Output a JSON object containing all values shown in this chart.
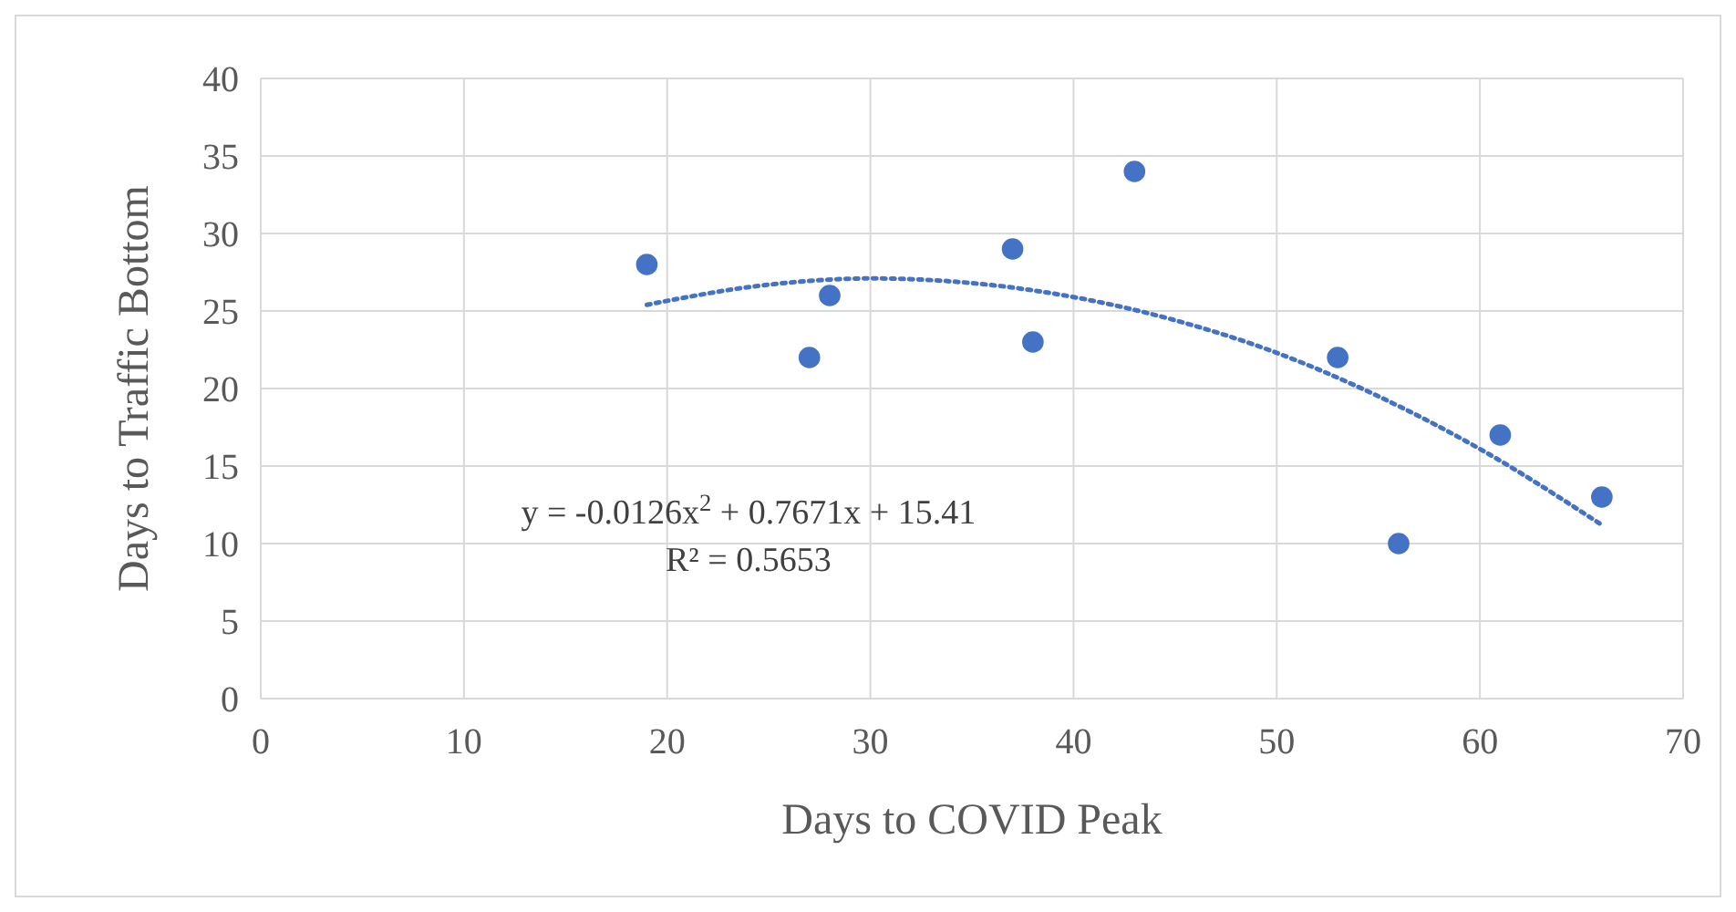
{
  "chart_data": {
    "type": "scatter",
    "xlabel": "Days to COVID Peak",
    "ylabel": "Days to Traffic Bottom",
    "xlim": [
      0,
      70
    ],
    "xticks": [
      0,
      10,
      20,
      30,
      40,
      50,
      60,
      70
    ],
    "ylim": [
      0,
      40
    ],
    "yticks": [
      0,
      5,
      10,
      15,
      20,
      25,
      30,
      35,
      40
    ],
    "grid": true,
    "series": [
      {
        "marker": "circle",
        "color": "#4472c4",
        "x": [
          19,
          27,
          28,
          37,
          38,
          43,
          53,
          56,
          61,
          66
        ],
        "values": [
          28,
          22,
          26,
          29,
          23,
          34,
          22,
          10,
          17,
          13
        ]
      },
      {
        "type": "line",
        "color": "#4472c4",
        "line_style": "dotted",
        "x": [
          19,
          25,
          30,
          35,
          40,
          45,
          50,
          55,
          60,
          66
        ],
        "values": [
          25.4,
          26.7,
          27.1,
          26.8,
          25.9,
          24.4,
          22.3,
          19.5,
          16.1,
          11.2
        ]
      }
    ],
    "annotations": [
      "y = -0.0126x$^{2}$ + 0.7671x + 15.41",
      "R² = 0.5653"
    ]
  }
}
